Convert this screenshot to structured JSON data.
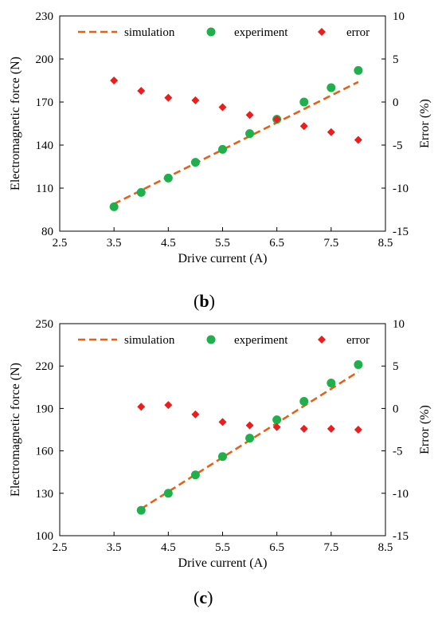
{
  "chart_data": [
    {
      "type": "scatter",
      "panel_label": "b",
      "xlabel": "Drive current (A)",
      "ylabel": "Electromagnetic  force (N)",
      "y2label": "Error (%)",
      "xlim": [
        2.5,
        8.5
      ],
      "xticks": [
        "2.5",
        "3.5",
        "4.5",
        "5.5",
        "6.5",
        "7.5",
        "8.5"
      ],
      "ylim": [
        80,
        230
      ],
      "yticks": [
        "80",
        "110",
        "140",
        "170",
        "200",
        "230"
      ],
      "y2lim": [
        -15,
        10
      ],
      "y2ticks": [
        "-15",
        "-10",
        "-5",
        "0",
        "5",
        "10"
      ],
      "legend_position": "top",
      "grid": false,
      "series": [
        {
          "name": "simulation",
          "style": "dashed-line",
          "color": "#e0631a",
          "axis": "left",
          "x": [
            3.5,
            8.0
          ],
          "y": [
            99,
            184
          ]
        },
        {
          "name": "experiment",
          "style": "circle",
          "color": "#1fb04b",
          "axis": "left",
          "x": [
            3.5,
            4.0,
            4.5,
            5.0,
            5.5,
            6.0,
            6.5,
            7.0,
            7.5,
            8.0
          ],
          "y": [
            97,
            107,
            117,
            128,
            137,
            148,
            158,
            170,
            180,
            192
          ]
        },
        {
          "name": "error",
          "style": "diamond",
          "color": "#ee1c1c",
          "axis": "right",
          "x": [
            3.5,
            4.0,
            4.5,
            5.0,
            5.5,
            6.0,
            6.5,
            7.0,
            7.5,
            8.0
          ],
          "y": [
            2.5,
            1.3,
            0.5,
            0.2,
            -0.6,
            -1.5,
            -2.0,
            -2.8,
            -3.5,
            -4.4
          ]
        }
      ]
    },
    {
      "type": "scatter",
      "panel_label": "c",
      "xlabel": "Drive current (A)",
      "ylabel": "Electromagnetic  force (N)",
      "y2label": "Error (%)",
      "xlim": [
        2.5,
        8.5
      ],
      "xticks": [
        "2.5",
        "3.5",
        "4.5",
        "5.5",
        "6.5",
        "7.5",
        "8.5"
      ],
      "ylim": [
        100,
        250
      ],
      "yticks": [
        "100",
        "130",
        "160",
        "190",
        "220",
        "250"
      ],
      "y2lim": [
        -15,
        10
      ],
      "y2ticks": [
        "-15",
        "-10",
        "-5",
        "0",
        "5",
        "10"
      ],
      "legend_position": "top",
      "grid": false,
      "series": [
        {
          "name": "simulation",
          "style": "dashed-line",
          "color": "#e0631a",
          "axis": "left",
          "x": [
            4.0,
            8.0
          ],
          "y": [
            119,
            216
          ]
        },
        {
          "name": "experiment",
          "style": "circle",
          "color": "#1fb04b",
          "axis": "left",
          "x": [
            4.0,
            4.5,
            5.0,
            5.5,
            6.0,
            6.5,
            7.0,
            7.5,
            8.0
          ],
          "y": [
            118,
            130,
            143,
            156,
            169,
            182,
            195,
            208,
            221
          ]
        },
        {
          "name": "error",
          "style": "diamond",
          "color": "#ee1c1c",
          "axis": "right",
          "x": [
            4.0,
            4.5,
            5.0,
            5.5,
            6.0,
            6.5,
            7.0,
            7.5,
            8.0
          ],
          "y": [
            0.2,
            0.4,
            -0.7,
            -1.6,
            -2.0,
            -2.2,
            -2.4,
            -2.4,
            -2.5
          ]
        }
      ]
    }
  ]
}
